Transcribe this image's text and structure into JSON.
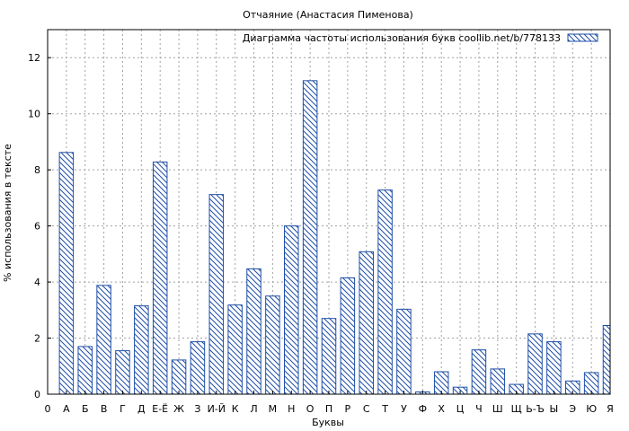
{
  "chart_data": {
    "type": "bar",
    "title": "Отчаяние (Анастасия Пименова)",
    "xlabel": "Буквы",
    "ylabel": "% использования в тексте",
    "legend": "Диаграмма частоты использования букв coollib.net/b/778133",
    "legend_position": "top-right",
    "grid": true,
    "ylim": [
      0,
      13
    ],
    "yticks": [
      0,
      2,
      4,
      6,
      8,
      10,
      12
    ],
    "categories": [
      "0",
      "А",
      "Б",
      "В",
      "Г",
      "Д",
      "Е-Ё",
      "Ж",
      "З",
      "И-Й",
      "К",
      "Л",
      "М",
      "Н",
      "О",
      "П",
      "Р",
      "С",
      "Т",
      "У",
      "Ф",
      "Х",
      "Ц",
      "Ч",
      "Ш",
      "Щ",
      "Ь-Ъ",
      "Ы",
      "Э",
      "Ю",
      "Я"
    ],
    "values": [
      0,
      8.62,
      1.7,
      3.88,
      1.55,
      3.15,
      8.28,
      1.22,
      1.87,
      7.12,
      3.18,
      4.47,
      3.5,
      6.0,
      11.18,
      2.7,
      4.15,
      5.08,
      7.28,
      3.03,
      0.08,
      0.8,
      0.25,
      1.58,
      0.9,
      0.35,
      2.15,
      1.87,
      0.47,
      0.77,
      2.45
    ],
    "colors": {
      "bar_stroke": "#1f4fa8",
      "hatch": "#1f4fa8",
      "grid": "#a0a0a0"
    }
  }
}
